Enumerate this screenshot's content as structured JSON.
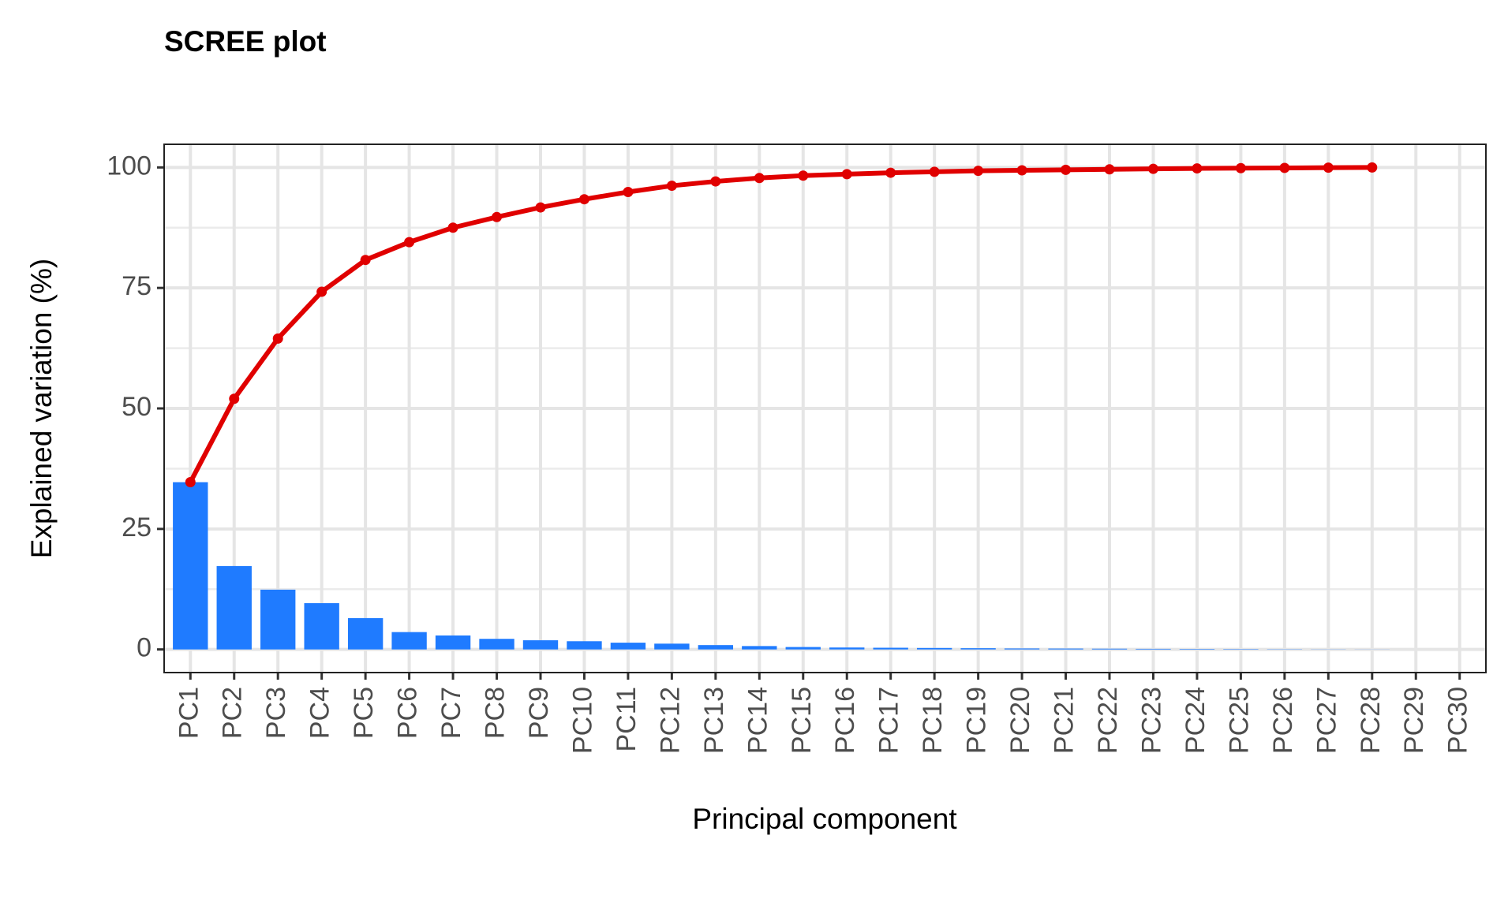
{
  "chart_data": {
    "type": "bar",
    "title": "SCREE plot",
    "x_label": "Principal component",
    "y_label": "Explained variation (%)",
    "categories": [
      "PC1",
      "PC2",
      "PC3",
      "PC4",
      "PC5",
      "PC6",
      "PC7",
      "PC8",
      "PC9",
      "PC10",
      "PC11",
      "PC12",
      "PC13",
      "PC14",
      "PC15",
      "PC16",
      "PC17",
      "PC18",
      "PC19",
      "PC20",
      "PC21",
      "PC22",
      "PC23",
      "PC24",
      "PC25",
      "PC26",
      "PC27",
      "PC28",
      "PC29",
      "PC30"
    ],
    "series": [
      {
        "type": "bar",
        "color": "#1f7bff",
        "values": [
          34.7,
          17.3,
          12.4,
          9.6,
          6.5,
          3.6,
          2.9,
          2.2,
          1.9,
          1.7,
          1.4,
          1.2,
          0.9,
          0.7,
          0.5,
          0.4,
          0.35,
          0.3,
          0.25,
          0.2,
          0.18,
          0.15,
          0.12,
          0.1,
          0.08,
          0.05,
          0.03,
          0.02,
          null,
          null
        ]
      },
      {
        "type": "line",
        "color": "#e00000",
        "values": [
          34.7,
          52.0,
          64.5,
          74.2,
          80.8,
          84.5,
          87.5,
          89.7,
          91.7,
          93.4,
          94.9,
          96.2,
          97.1,
          97.8,
          98.3,
          98.6,
          98.9,
          99.1,
          99.3,
          99.4,
          99.5,
          99.6,
          99.7,
          99.8,
          99.85,
          99.9,
          99.95,
          100,
          null,
          null
        ]
      }
    ],
    "ylim": [
      -4.8,
      104.8
    ],
    "yticks": [
      0,
      25,
      50,
      75,
      100
    ],
    "yminor_ticks": [
      12.5,
      37.5,
      62.5,
      87.5
    ],
    "grid": true
  }
}
